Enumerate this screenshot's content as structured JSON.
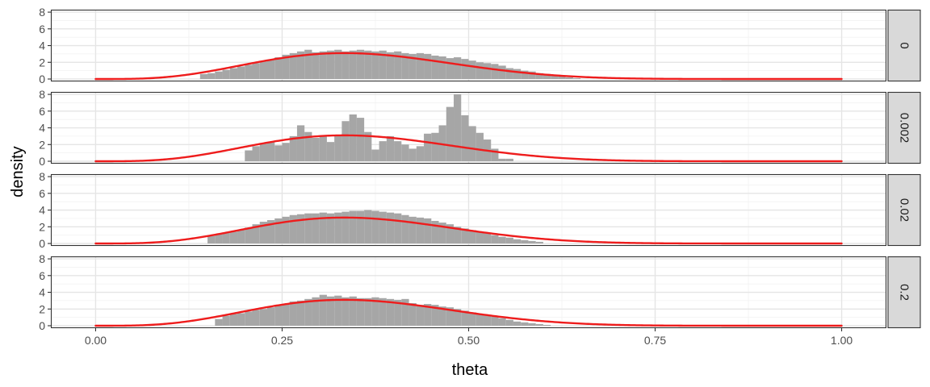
{
  "chart_data": {
    "type": "histogram",
    "facet_layout": "rows, strip labels on right",
    "grid": true,
    "xlabel": "theta",
    "ylabel": "density",
    "xlim": [
      -0.06,
      1.06
    ],
    "ylim": [
      0,
      8.2
    ],
    "x_ticks": [
      0,
      0.25,
      0.5,
      0.75,
      1
    ],
    "x_tick_labels": [
      "0.00",
      "0.25",
      "0.50",
      "0.75",
      "1.00"
    ],
    "y_ticks": [
      0,
      2,
      4,
      6,
      8
    ],
    "y_tick_labels": [
      "0",
      "2",
      "4",
      "6",
      "8"
    ],
    "bin_width": 0.01,
    "colors": {
      "bars": "#a6a6a6",
      "curve": "#ee1c1c",
      "panel_border": "#333333",
      "grid_major": "#e5e5e5",
      "grid_minor": "#f2f2f2",
      "strip_fill": "#d9d9d9"
    },
    "overlay_curve": {
      "name": "Beta(5, 9) density",
      "alpha": 5,
      "beta": 9,
      "x_range": [
        0,
        1
      ]
    },
    "panels": [
      {
        "strip_label": "0",
        "bin_start": 0.14,
        "densities": [
          0.6,
          0.7,
          0.9,
          1.1,
          1.3,
          1.5,
          1.7,
          1.9,
          2.1,
          2.3,
          2.6,
          2.9,
          3.1,
          3.3,
          3.5,
          3.2,
          3.3,
          3.4,
          3.5,
          3.3,
          3.4,
          3.5,
          3.4,
          3.3,
          3.4,
          3.2,
          3.3,
          3.1,
          3.0,
          3.1,
          3.0,
          2.8,
          2.7,
          2.5,
          2.6,
          2.4,
          2.2,
          2.0,
          1.9,
          1.8,
          1.6,
          1.3,
          1.2,
          1.0,
          0.9,
          0.7,
          0.6,
          0.4,
          0.3,
          0.2,
          0.1
        ]
      },
      {
        "strip_label": "0.002",
        "bin_start": 0.2,
        "densities": [
          1.3,
          1.8,
          2.1,
          2.3,
          1.9,
          2.2,
          3.0,
          4.3,
          3.5,
          2.8,
          3.0,
          2.3,
          3.1,
          4.8,
          5.6,
          5.2,
          3.5,
          1.4,
          2.4,
          3.0,
          2.4,
          2.0,
          1.5,
          1.8,
          3.3,
          3.4,
          4.3,
          6.5,
          8.0,
          5.5,
          4.2,
          3.4,
          2.6,
          1.5,
          0.3,
          0.3
        ]
      },
      {
        "strip_label": "0.02",
        "bin_start": 0.15,
        "densities": [
          0.9,
          1.1,
          1.3,
          1.4,
          1.6,
          1.9,
          2.3,
          2.6,
          2.8,
          3.0,
          3.2,
          3.4,
          3.5,
          3.6,
          3.6,
          3.7,
          3.6,
          3.7,
          3.8,
          3.9,
          3.9,
          4.0,
          3.9,
          3.8,
          3.7,
          3.6,
          3.4,
          3.2,
          3.1,
          3.0,
          2.7,
          2.5,
          2.3,
          2.0,
          1.8,
          1.6,
          1.4,
          1.2,
          1.0,
          0.8,
          0.7,
          0.5,
          0.4,
          0.3,
          0.2
        ]
      },
      {
        "strip_label": "0.2",
        "bin_start": 0.16,
        "densities": [
          0.8,
          1.2,
          1.4,
          1.5,
          1.7,
          1.9,
          2.0,
          2.2,
          2.4,
          2.6,
          2.9,
          3.0,
          3.2,
          3.4,
          3.7,
          3.5,
          3.6,
          3.4,
          3.5,
          3.3,
          3.3,
          3.4,
          3.3,
          3.2,
          3.1,
          3.2,
          2.7,
          2.5,
          2.6,
          2.5,
          2.3,
          2.2,
          2.0,
          1.8,
          1.6,
          1.4,
          1.2,
          1.1,
          0.9,
          0.7,
          0.5,
          0.4,
          0.3,
          0.2,
          0.1
        ]
      }
    ]
  }
}
